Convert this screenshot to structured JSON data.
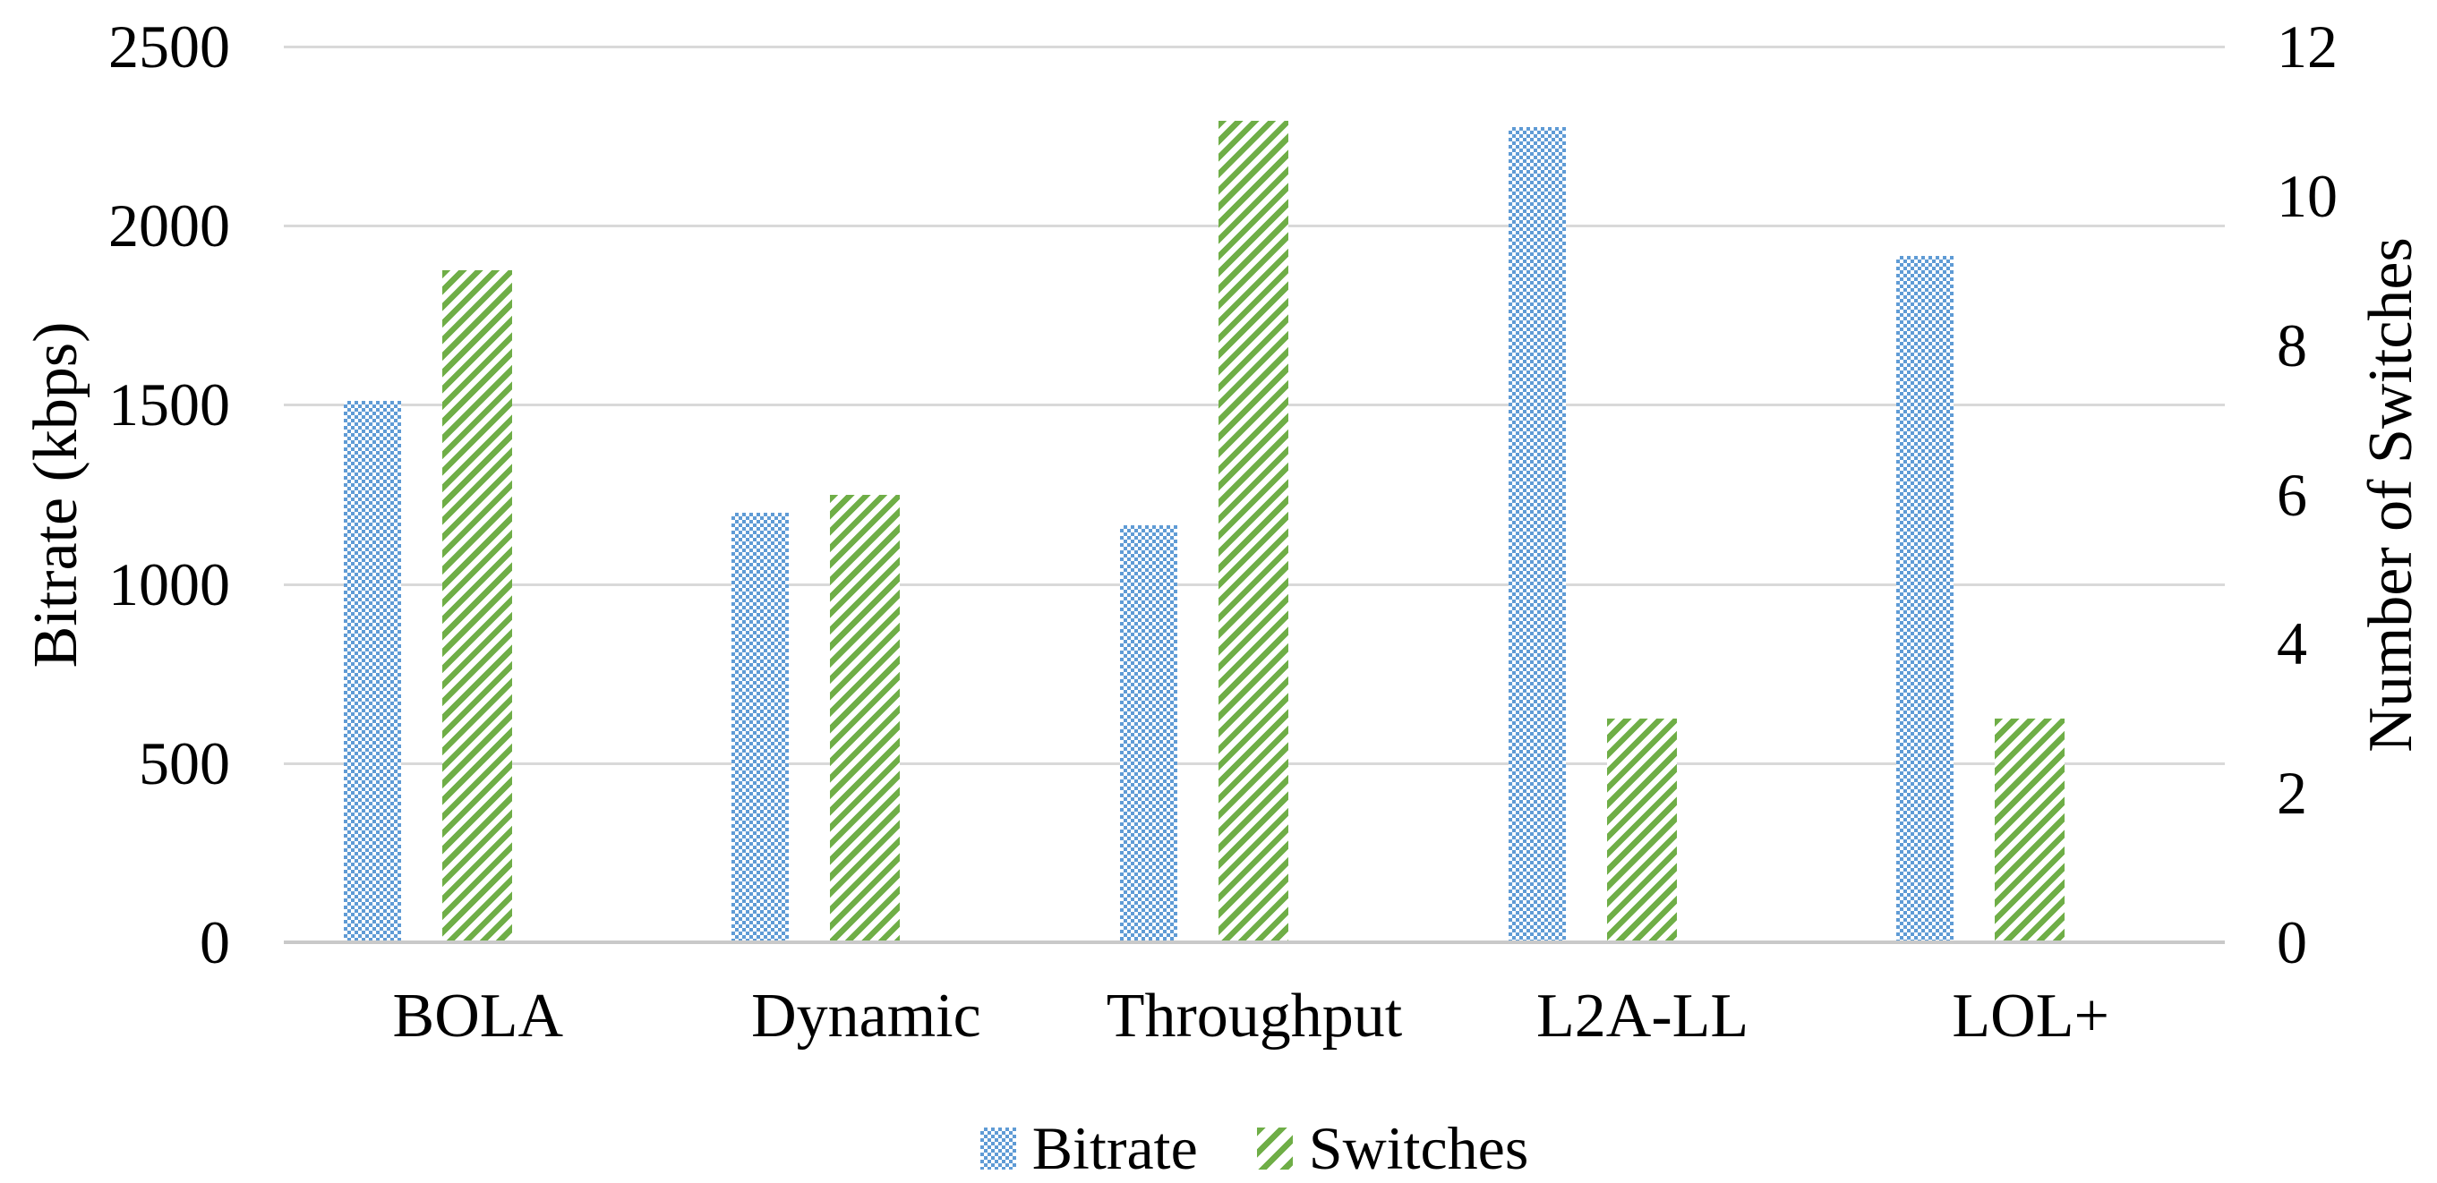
{
  "chart_data": {
    "type": "bar",
    "categories": [
      "BOLA",
      "Dynamic",
      "Throughput",
      "L2A-LL",
      "LOL+"
    ],
    "series": [
      {
        "name": "Bitrate",
        "axis": "left",
        "pattern": "blue-checker",
        "color": "#5F9BD5",
        "values": [
          1510,
          1200,
          1165,
          2275,
          1915
        ]
      },
      {
        "name": "Switches",
        "axis": "right",
        "pattern": "green-stripes",
        "color": "#6FAE47",
        "values": [
          9,
          6,
          11,
          3,
          3
        ]
      }
    ],
    "left_axis": {
      "label": "Bitrate (kbps)",
      "min": 0,
      "max": 2500,
      "step": 500,
      "ticks": [
        "2500",
        "2000",
        "1500",
        "1000",
        "500",
        "0"
      ]
    },
    "right_axis": {
      "label": "Number of Switches",
      "min": 0,
      "max": 12,
      "step": 2,
      "ticks": [
        "12",
        "10",
        "8",
        "6",
        "4",
        "2",
        "0"
      ]
    },
    "grid": true,
    "gridline_color": "#D9D9D9",
    "legend_position": "bottom",
    "background": "#FFFFFF",
    "text_color": "#000000"
  },
  "legend": {
    "items": [
      {
        "label": "Bitrate",
        "swatch": "blue-checker"
      },
      {
        "label": "Switches",
        "swatch": "green-stripes"
      }
    ]
  }
}
